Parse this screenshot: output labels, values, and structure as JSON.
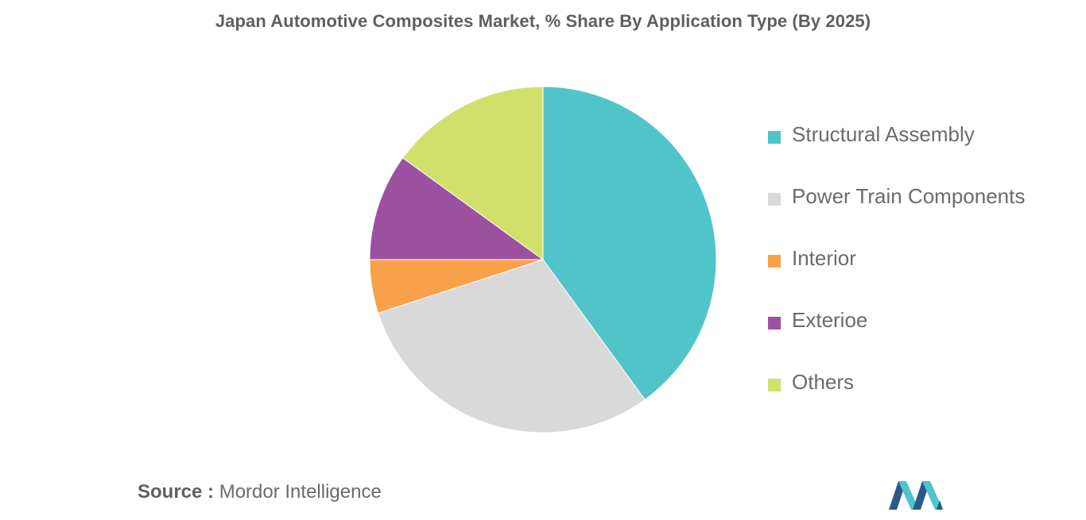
{
  "chart_data": {
    "type": "pie",
    "title": "Japan Automotive Composites Market, % Share By Application Type (By 2025)",
    "categories": [
      "Structural Assembly",
      "Power Train Components",
      "Interior",
      "Exterioe",
      "Others"
    ],
    "values": [
      40,
      30,
      5,
      10,
      15
    ],
    "colors": [
      "#50c4c9",
      "#d9d9d9",
      "#f9a04a",
      "#9c51a0",
      "#d1e06a"
    ],
    "legend_position": "right",
    "start_angle_deg": 0,
    "direction": "clockwise"
  },
  "source": {
    "label": "Source :",
    "text": "Mordor Intelligence"
  },
  "logo": {
    "icon": "mordor-intelligence-logo",
    "colors": [
      "#2b5a8a",
      "#4fc4cf"
    ]
  }
}
